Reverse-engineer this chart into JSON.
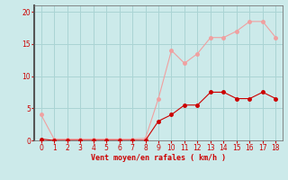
{
  "x": [
    0,
    1,
    2,
    3,
    4,
    5,
    6,
    7,
    8,
    9,
    10,
    11,
    12,
    13,
    14,
    15,
    16,
    17,
    18
  ],
  "rafales": [
    4,
    0.2,
    0.2,
    0.2,
    0.2,
    0.2,
    0.2,
    0.2,
    0.3,
    6.5,
    14,
    12,
    13.5,
    16,
    16,
    17,
    18.5,
    18.5,
    16
  ],
  "moyen": [
    0.2,
    0,
    0,
    0,
    0,
    0,
    0,
    0,
    0,
    3,
    4,
    5.5,
    5.5,
    7.5,
    7.5,
    6.5,
    6.5,
    7.5,
    6.5
  ],
  "xlabel": "Vent moyen/en rafales ( km/h )",
  "ylim": [
    0,
    21
  ],
  "xlim": [
    -0.5,
    18.5
  ],
  "yticks": [
    0,
    5,
    10,
    15,
    20
  ],
  "xticks": [
    0,
    1,
    2,
    3,
    4,
    5,
    6,
    7,
    8,
    9,
    10,
    11,
    12,
    13,
    14,
    15,
    16,
    17,
    18
  ],
  "bg_color": "#cceaea",
  "grid_color": "#aad4d4",
  "rafales_color": "#f0a0a0",
  "moyen_color": "#cc0000",
  "xlabel_color": "#cc0000",
  "tick_color": "#cc0000",
  "spine_color": "#777777",
  "left_spine_color": "#555555",
  "line_width": 0.8,
  "marker_size": 2.5
}
